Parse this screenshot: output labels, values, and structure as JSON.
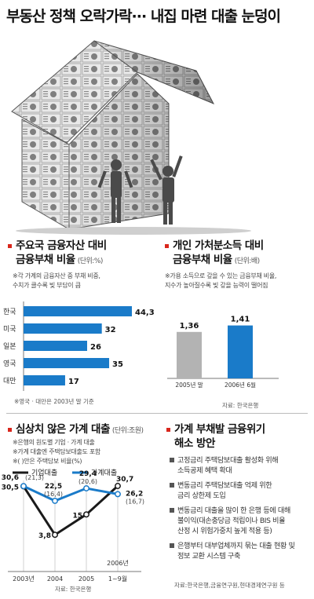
{
  "title": "부동산 정책 오락가락··· 내집 마련 대출 눈덩이",
  "colors": {
    "accent_red": "#d9261c",
    "bar_blue": "#1a7bc9",
    "bar_gray": "#b3b3b3",
    "line_black": "#1a1a1a",
    "line_blue": "#1a7bc9"
  },
  "illustration": {
    "icon": "house-made-of-banknotes-icon"
  },
  "section1": {
    "title_line1": "주요국 금융자산 대비",
    "title_line2": "금융부채 비율",
    "unit": "(단위:%)",
    "note_line1": "※각 가계의 금융자산 중 부채 비중,",
    "note_line2": "수치가 클수록 빚 부담이 큼",
    "footnote": "※영국 · 대만은 2003년 말 기준"
  },
  "section2": {
    "title_line1": "개인 가처분소득 대비",
    "title_line2": "금융부채 비율",
    "unit": "(단위:배)",
    "note_line1": "※가용 소득으로 갚을 수 있는 금융부채 비율,",
    "note_line2": "지수가 높아질수록 빚 갚을 능력이 떨어짐",
    "source": "자료: 한국은행"
  },
  "section3": {
    "title": "심상치 않은 가계 대출",
    "unit": "(단위:조원)",
    "note1": "※은행의 원도별 기업 · 가계 대출",
    "note2": "※가계 대출엔 주택담보대출도 포함",
    "note3": "※( )안은 주택담보 비율(%)",
    "source": "자료: 한국은행"
  },
  "section4": {
    "title_line1": "가계 부채발 금융위기",
    "title_line2": "해소 방안",
    "items": [
      {
        "line1": "고정금리 주택담보대출 활성화 위해",
        "line2": "소득공제 혜택 확대"
      },
      {
        "line1": "변동금리 주택담보대출 억제 위한",
        "line2": "금리 상한제 도입"
      },
      {
        "line1": "변동금리 대출을 많이 한 은행 등에 대해",
        "line2": "불이익(대손충당금 적립이나 BIS 비율",
        "line3": "산정 시 위험가중치 높게 적용 등)"
      },
      {
        "line1": "은행부터 대부업체까지 묶는 대출 현황 및",
        "line2": "정보 교환 시스템 구축"
      }
    ],
    "source": "자료:한국은행,금융연구원,현대경제연구원 등"
  },
  "chart_data": [
    {
      "type": "bar",
      "orientation": "horizontal",
      "categories": [
        "한국",
        "미국",
        "일본",
        "영국",
        "대만"
      ],
      "values": [
        44.3,
        32,
        26,
        35,
        17
      ],
      "value_labels": [
        "44,3",
        "32",
        "26",
        "35",
        "17"
      ],
      "ylabel": "",
      "xlim": [
        0,
        44.3
      ]
    },
    {
      "type": "bar",
      "categories": [
        "2005년 말",
        "2006년 6월"
      ],
      "values": [
        1.36,
        1.41
      ],
      "value_labels": [
        "1,36",
        "1,41"
      ],
      "ylim": [
        1.0,
        1.45
      ]
    },
    {
      "type": "line",
      "categories": [
        "2003년",
        "2004",
        "2005",
        "2006년 1~9월"
      ],
      "series": [
        {
          "name": "기업대출",
          "values": [
            30.5,
            3.8,
            15,
            30.7
          ],
          "value_labels": [
            "30,5",
            "3,8",
            "15",
            "30,7"
          ]
        },
        {
          "name": "가계대출",
          "values": [
            30.6,
            22.5,
            29.4,
            26.2
          ],
          "value_labels": [
            "30,6",
            "22,5",
            "29,4",
            "26,2"
          ],
          "mortgage_share": [
            "(21,3)",
            "(16,4)",
            "(20,6)",
            "(16,7)"
          ]
        }
      ],
      "ylim": [
        0,
        32
      ]
    }
  ]
}
